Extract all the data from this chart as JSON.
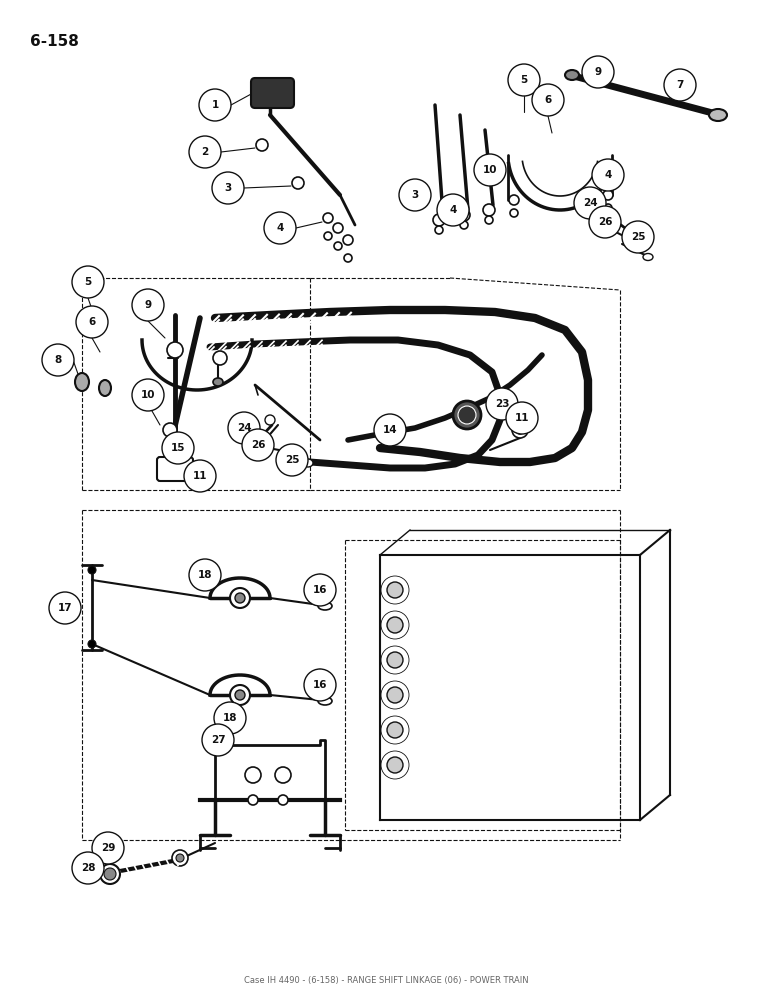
{
  "page_label": "6-158",
  "background_color": "#ffffff",
  "line_color": "#111111",
  "fig_width": 7.72,
  "fig_height": 10.0,
  "dpi": 100,
  "footer_text": "Case IH 4490 - (6-158) - RANGE SHIFT LINKAGE (06) - POWER TRAIN"
}
